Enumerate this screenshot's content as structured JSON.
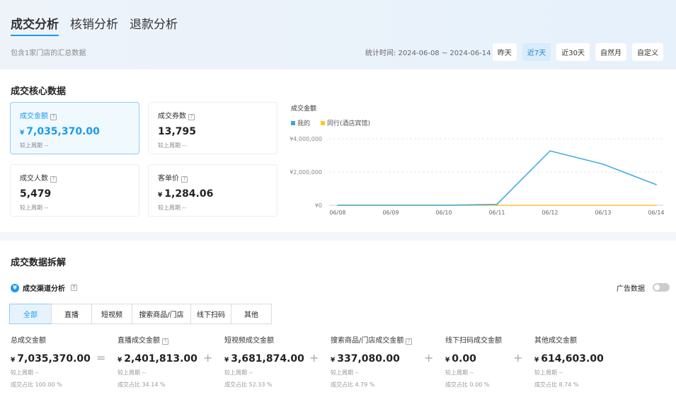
{
  "tabs": [
    "成交分析",
    "核销分析",
    "退款分析"
  ],
  "subtitle": "包含1家门店的汇总数据",
  "date_range": "统计时间: 2024-06-08 ~ 2024-06-14",
  "date_buttons": [
    "昨天",
    "近7天",
    "近30天",
    "自然月",
    "自定义"
  ],
  "active_date_button": "近7天",
  "core": {
    "title": "成交核心数据",
    "kpis": [
      {
        "label": "成交金额",
        "currency": "¥",
        "value": "7,035,370.00",
        "compare": "较上周期 --"
      },
      {
        "label": "成交券数",
        "currency": "",
        "value": "13,795",
        "compare": "较上周期 --"
      },
      {
        "label": "成交人数",
        "currency": "",
        "value": "5,479",
        "compare": "较上周期 --"
      },
      {
        "label": "客单价",
        "currency": "¥",
        "value": "1,284.06",
        "compare": "较上周期 --"
      }
    ]
  },
  "chart_data": {
    "type": "line",
    "title": "成交金额",
    "categories": [
      "06/08",
      "06/09",
      "06/10",
      "06/11",
      "06/12",
      "06/13",
      "06/14"
    ],
    "series": [
      {
        "name": "我的",
        "color": "#3aa7e0",
        "values": [
          0,
          0,
          0,
          55000,
          3270000,
          2470000,
          1240000
        ]
      },
      {
        "name": "同行(酒店宾馆)",
        "color": "#f5c928",
        "values": [
          0,
          0,
          0,
          0,
          0,
          0,
          0
        ]
      }
    ],
    "ylim": [
      0,
      4000000
    ],
    "yticks": [
      "¥0",
      "¥2,000,000",
      "¥4,000,000"
    ],
    "legend": "top-left",
    "grid": true
  },
  "breakdown": {
    "title": "成交数据拆解",
    "channel_title": "成交渠道分析",
    "ad_label": "广告数据",
    "channel_tabs": [
      "全部",
      "直播",
      "短视频",
      "搜索商品/门店",
      "线下扫码",
      "其他"
    ],
    "items": [
      {
        "label": "总成交金额",
        "value": "7,035,370.00",
        "compare": "较上周期 --",
        "share": "成交占比 100.00 %"
      },
      {
        "label": "直播成交金额",
        "value": "2,401,813.00",
        "compare": "较上周期 --",
        "share": "成交占比 34.14 %"
      },
      {
        "label": "短视频成交金额",
        "value": "3,681,874.00",
        "compare": "较上周期 --",
        "share": "成交占比 52.33 %"
      },
      {
        "label": "搜索商品/门店成交金额",
        "value": "337,080.00",
        "compare": "较上周期 --",
        "share": "成交占比 4.79 %"
      },
      {
        "label": "线下扫码成交金额",
        "value": "0.00",
        "compare": "较上周期 --",
        "share": "成交占比 0.00 %"
      },
      {
        "label": "其他成交金额",
        "value": "614,603.00",
        "compare": "较上周期 --",
        "share": "成交占比 8.74 %"
      }
    ],
    "operators": [
      "=",
      "+",
      "+",
      "+",
      "+"
    ],
    "currency": "¥"
  }
}
